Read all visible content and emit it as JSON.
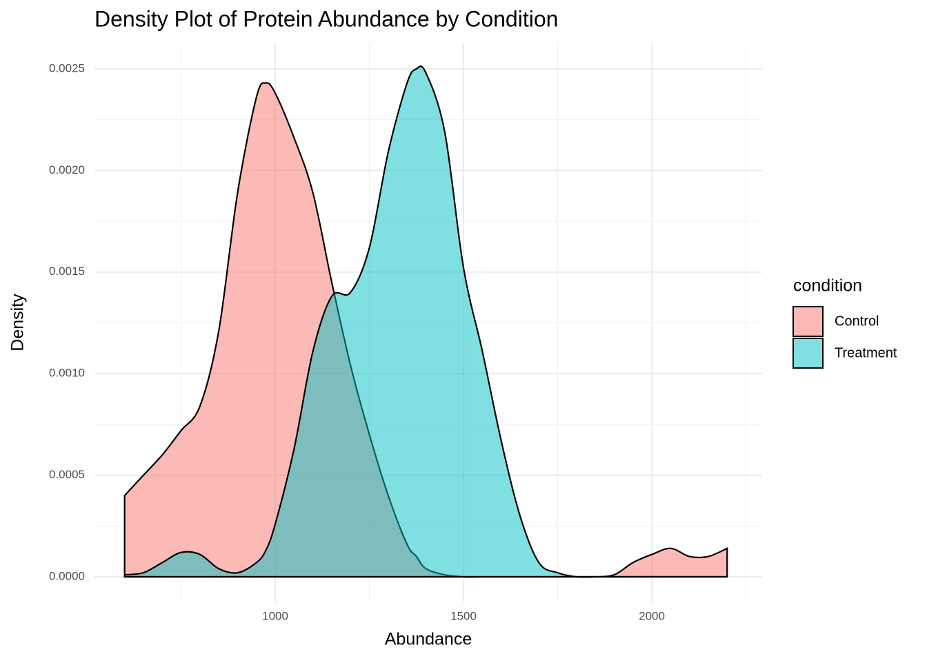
{
  "chart_data": {
    "type": "area",
    "title": "Density Plot of Protein Abundance by Condition",
    "x_label": "Abundance",
    "y_label": "Density",
    "legend_title": "condition",
    "legend": "right",
    "x": [
      600,
      650,
      700,
      750,
      800,
      850,
      900,
      950,
      975,
      1000,
      1050,
      1100,
      1150,
      1200,
      1250,
      1300,
      1350,
      1375,
      1400,
      1450,
      1500,
      1550,
      1600,
      1650,
      1700,
      1750,
      1800,
      1850,
      1900,
      1950,
      2000,
      2050,
      2100,
      2150,
      2200
    ],
    "series": [
      {
        "name": "Control",
        "color": "#F8766D",
        "values": [
          0.0004,
          0.0005,
          0.0006,
          0.00072,
          0.00084,
          0.00121,
          0.00189,
          0.00236,
          0.00243,
          0.00238,
          0.00216,
          0.00189,
          0.00145,
          0.00104,
          0.0007,
          0.0004,
          0.00016,
          0.0001,
          4e-05,
          1e-05,
          0,
          0,
          0,
          0,
          0,
          0,
          0,
          0,
          1e-05,
          7e-05,
          0.00011,
          0.00014,
          0.0001,
          0.0001,
          0.00014
        ]
      },
      {
        "name": "Treatment",
        "color": "#00BFC4",
        "values": [
          1e-05,
          2e-05,
          7e-05,
          0.00012,
          0.00011,
          4e-05,
          2e-05,
          7e-05,
          0.00013,
          0.00026,
          0.00063,
          0.00111,
          0.00138,
          0.0014,
          0.00162,
          0.00209,
          0.00243,
          0.0025,
          0.00248,
          0.00219,
          0.00152,
          0.00111,
          0.00067,
          0.0003,
          7e-05,
          2e-05,
          0,
          0,
          0,
          0,
          0,
          0,
          0,
          0,
          0
        ]
      }
    ],
    "xlim": [
      520,
      2293
    ],
    "ylim": [
      -0.000122,
      0.002625
    ],
    "xticks": [
      1000,
      1500,
      2000
    ],
    "yticks": [
      {
        "value": 0,
        "label": "0.0000"
      },
      {
        "value": 0.0005,
        "label": "0.0005"
      },
      {
        "value": 0.001,
        "label": "0.0010"
      },
      {
        "value": 0.0015,
        "label": "0.0015"
      },
      {
        "value": 0.002,
        "label": "0.0020"
      },
      {
        "value": 0.0025,
        "label": "0.0025"
      }
    ],
    "xminor": [
      750,
      1250,
      1750,
      2250
    ],
    "yminor": [
      0.00025,
      0.00075,
      0.00125,
      0.00175,
      0.00225
    ],
    "grid": true,
    "opacity": 0.5
  }
}
